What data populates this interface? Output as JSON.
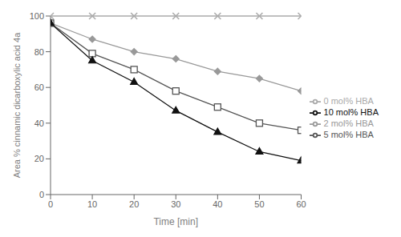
{
  "chart_data": {
    "type": "line",
    "xlabel": "Time [min]",
    "ylabel": "Area % cinnamic dicarboxylic acid 4a",
    "x": [
      0,
      10,
      20,
      30,
      40,
      50,
      60
    ],
    "xlim": [
      0,
      60
    ],
    "ylim": [
      0,
      100
    ],
    "xticks": [
      0,
      10,
      20,
      30,
      40,
      50,
      60
    ],
    "yticks": [
      0,
      20,
      40,
      60,
      80,
      100
    ],
    "grid": false,
    "legend": "right",
    "series": [
      {
        "name": "0 mol% HBA",
        "color": "#aaaaaa",
        "marker": "x",
        "values": [
          100,
          100,
          100,
          100,
          100,
          100,
          100
        ]
      },
      {
        "name": "2 mol% HBA",
        "color": "#999999",
        "marker": "diamond",
        "values": [
          96,
          87,
          80,
          76,
          69,
          65,
          58
        ]
      },
      {
        "name": "5 mol% HBA",
        "color": "#555555",
        "marker": "open square",
        "values": [
          96,
          79,
          70,
          58,
          49,
          40,
          36
        ]
      },
      {
        "name": "10 mol% HBA",
        "color": "#111111",
        "marker": "triangle",
        "values": [
          96,
          75,
          63,
          47,
          35,
          24,
          19
        ]
      }
    ]
  }
}
